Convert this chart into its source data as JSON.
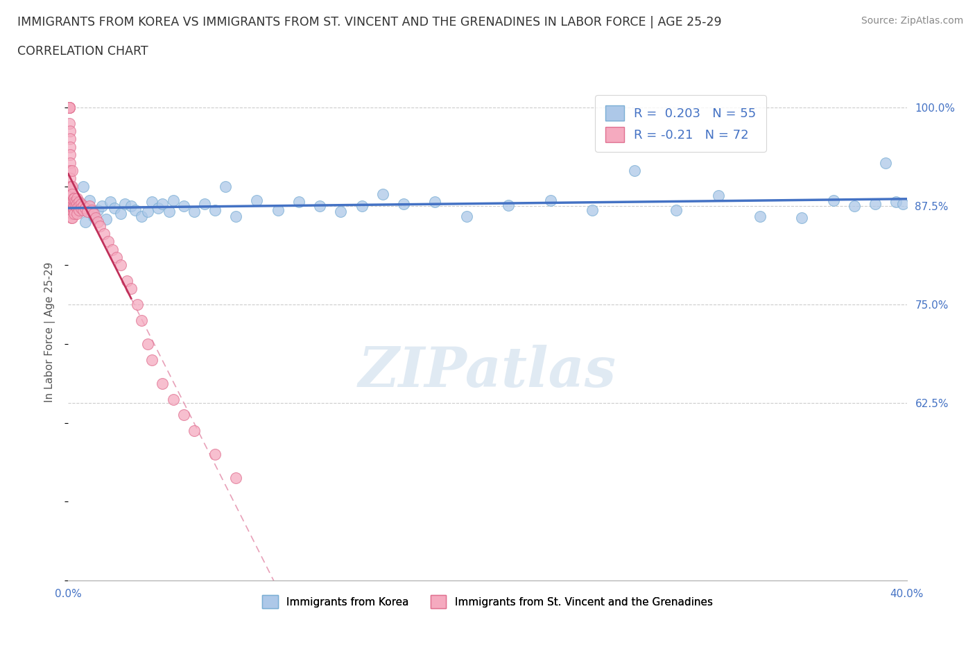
{
  "title_line1": "IMMIGRANTS FROM KOREA VS IMMIGRANTS FROM ST. VINCENT AND THE GRENADINES IN LABOR FORCE | AGE 25-29",
  "title_line2": "CORRELATION CHART",
  "source_text": "Source: ZipAtlas.com",
  "ylabel": "In Labor Force | Age 25-29",
  "xlim": [
    0.0,
    0.4
  ],
  "ylim": [
    0.4,
    1.03
  ],
  "xticks": [
    0.0,
    0.05,
    0.1,
    0.15,
    0.2,
    0.25,
    0.3,
    0.35,
    0.4
  ],
  "yticks_right": [
    1.0,
    0.875,
    0.75,
    0.625
  ],
  "ytick_right_labels": [
    "100.0%",
    "87.5%",
    "75.0%",
    "62.5%"
  ],
  "hlines": [
    1.0,
    0.875,
    0.75,
    0.625
  ],
  "korea_R": 0.203,
  "korea_N": 55,
  "stvincent_R": -0.21,
  "stvincent_N": 72,
  "korea_color": "#adc8e8",
  "korea_edge_color": "#7aaed4",
  "stvincent_color": "#f5aabf",
  "stvincent_edge_color": "#e07090",
  "korea_trend_color": "#4472c4",
  "stvincent_trend_color": "#c0305a",
  "stvincent_trend_dashed_color": "#e8a0b8",
  "watermark": "ZIPatlas",
  "korea_x": [
    0.003,
    0.004,
    0.005,
    0.006,
    0.007,
    0.008,
    0.009,
    0.01,
    0.012,
    0.014,
    0.016,
    0.018,
    0.02,
    0.022,
    0.025,
    0.027,
    0.03,
    0.032,
    0.035,
    0.038,
    0.04,
    0.043,
    0.045,
    0.048,
    0.05,
    0.055,
    0.06,
    0.065,
    0.07,
    0.075,
    0.08,
    0.09,
    0.1,
    0.11,
    0.12,
    0.13,
    0.14,
    0.15,
    0.16,
    0.175,
    0.19,
    0.21,
    0.23,
    0.25,
    0.27,
    0.29,
    0.31,
    0.33,
    0.35,
    0.365,
    0.375,
    0.385,
    0.39,
    0.395,
    0.398
  ],
  "korea_y": [
    0.875,
    0.88,
    0.868,
    0.875,
    0.9,
    0.855,
    0.87,
    0.882,
    0.862,
    0.87,
    0.875,
    0.858,
    0.88,
    0.872,
    0.865,
    0.878,
    0.875,
    0.87,
    0.862,
    0.868,
    0.88,
    0.872,
    0.878,
    0.868,
    0.882,
    0.875,
    0.868,
    0.878,
    0.87,
    0.9,
    0.862,
    0.882,
    0.87,
    0.88,
    0.875,
    0.868,
    0.875,
    0.89,
    0.878,
    0.88,
    0.862,
    0.876,
    0.882,
    0.87,
    0.92,
    0.87,
    0.888,
    0.862,
    0.86,
    0.882,
    0.875,
    0.878,
    0.93,
    0.88,
    0.878
  ],
  "stvincent_x": [
    0.0005,
    0.0005,
    0.0005,
    0.0005,
    0.0005,
    0.001,
    0.001,
    0.001,
    0.001,
    0.001,
    0.001,
    0.001,
    0.001,
    0.0015,
    0.0015,
    0.0015,
    0.0015,
    0.0015,
    0.002,
    0.002,
    0.002,
    0.002,
    0.002,
    0.002,
    0.002,
    0.002,
    0.0025,
    0.0025,
    0.0025,
    0.003,
    0.003,
    0.003,
    0.003,
    0.003,
    0.0035,
    0.0035,
    0.004,
    0.004,
    0.004,
    0.004,
    0.005,
    0.005,
    0.005,
    0.006,
    0.006,
    0.007,
    0.007,
    0.008,
    0.009,
    0.01,
    0.011,
    0.012,
    0.013,
    0.014,
    0.015,
    0.017,
    0.019,
    0.021,
    0.023,
    0.025,
    0.028,
    0.03,
    0.033,
    0.035,
    0.038,
    0.04,
    0.045,
    0.05,
    0.055,
    0.06,
    0.07,
    0.08
  ],
  "stvincent_y": [
    1.0,
    1.0,
    1.0,
    1.0,
    0.98,
    0.97,
    0.96,
    0.95,
    0.94,
    0.93,
    0.92,
    0.91,
    0.9,
    0.9,
    0.89,
    0.88,
    0.87,
    0.86,
    0.92,
    0.9,
    0.89,
    0.88,
    0.875,
    0.87,
    0.865,
    0.86,
    0.885,
    0.875,
    0.87,
    0.885,
    0.88,
    0.875,
    0.87,
    0.865,
    0.88,
    0.875,
    0.885,
    0.878,
    0.872,
    0.865,
    0.88,
    0.875,
    0.87,
    0.878,
    0.872,
    0.875,
    0.87,
    0.872,
    0.868,
    0.875,
    0.87,
    0.865,
    0.86,
    0.855,
    0.85,
    0.84,
    0.83,
    0.82,
    0.81,
    0.8,
    0.78,
    0.77,
    0.75,
    0.73,
    0.7,
    0.68,
    0.65,
    0.63,
    0.61,
    0.59,
    0.56,
    0.53
  ]
}
